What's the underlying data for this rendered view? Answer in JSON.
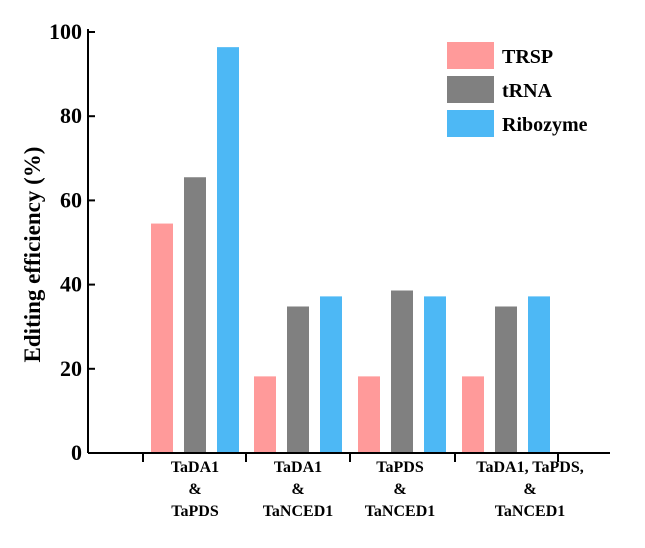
{
  "chart_data": {
    "type": "bar",
    "title": "",
    "xlabel": "",
    "ylabel": "Editing efficiency (%)",
    "ylim": [
      0,
      100
    ],
    "yticks": [
      0,
      20,
      40,
      60,
      80,
      100
    ],
    "grid": false,
    "legend_position": "top-right",
    "categories": [
      [
        "TaDA1",
        "&",
        "TaPDS"
      ],
      [
        "TaDA1",
        "&",
        "TaNCED1"
      ],
      [
        "TaPDS",
        "&",
        "TaNCED1"
      ],
      [
        "TaDA1, TaPDS,",
        "&",
        "TaNCED1"
      ]
    ],
    "series": [
      {
        "name": "TRSP",
        "color": "#FF9A9A",
        "values": [
          54.5,
          18.2,
          18.2,
          18.2
        ]
      },
      {
        "name": "tRNA",
        "color": "#808080",
        "values": [
          65.5,
          34.8,
          38.6,
          34.8
        ]
      },
      {
        "name": "Ribozyme",
        "color": "#4DB8F5",
        "values": [
          96.4,
          37.2,
          37.2,
          37.2
        ]
      }
    ]
  }
}
